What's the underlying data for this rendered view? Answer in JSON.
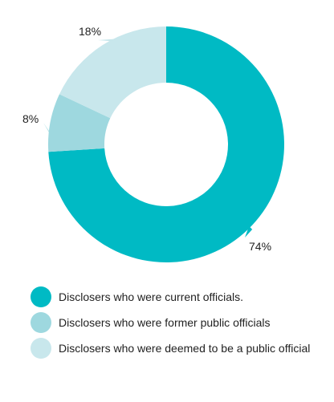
{
  "chart_data": {
    "type": "donut",
    "values": [
      74,
      8,
      18
    ],
    "value_labels": [
      "74%",
      "8%",
      "18%"
    ],
    "categories": [
      "Disclosers who were current officials.",
      "Disclosers who were former public officials",
      "Disclosers who were deemed to be a public official"
    ],
    "colors": [
      "#00bac4",
      "#9ed8df",
      "#c8e7ec"
    ],
    "start": "12 o'clock",
    "direction": "clockwise",
    "legend_position": "bottom"
  }
}
